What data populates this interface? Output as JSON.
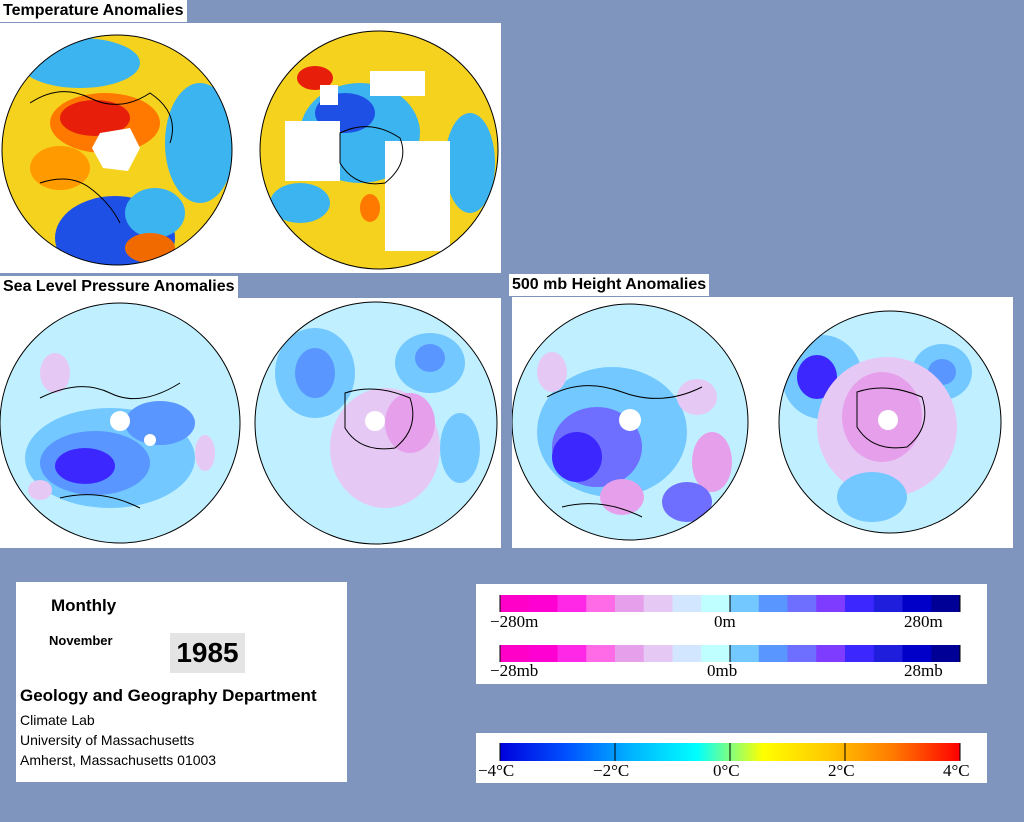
{
  "titles": {
    "temperature": "Temperature Anomalies",
    "slp": "Sea Level Pressure Anomalies",
    "height500": "500 mb Height Anomalies"
  },
  "info": {
    "period": "Monthly",
    "month": "November",
    "year": "1985",
    "department": "Geology and Geography Department",
    "lines": [
      "Climate Lab",
      "University of Massachusetts",
      "Amherst, Massachusetts 01003"
    ]
  },
  "legends": {
    "height": {
      "labels": [
        "−280m",
        "0m",
        "280m"
      ],
      "colors": [
        "#ff00c8",
        "#ff00d2",
        "#ff28e6",
        "#ff6ae6",
        "#e6a0eb",
        "#e6c8f5",
        "#d2e6ff",
        "#c0ffff",
        "#73c8ff",
        "#5a96ff",
        "#6e6eff",
        "#7d3cff",
        "#3c28ff",
        "#1e1edc",
        "#0000c8",
        "#000096"
      ]
    },
    "pressure": {
      "labels": [
        "−28mb",
        "0mb",
        "28mb"
      ],
      "colors": [
        "#ff00c8",
        "#ff00d2",
        "#ff28e6",
        "#ff6ae6",
        "#e6a0eb",
        "#e6c8f5",
        "#d2e6ff",
        "#c0ffff",
        "#73c8ff",
        "#5a96ff",
        "#6e6eff",
        "#7d3cff",
        "#3c28ff",
        "#1e1edc",
        "#0000c8",
        "#000096"
      ]
    },
    "temperature": {
      "labels": [
        "−4°C",
        "−2°C",
        "0°C",
        "2°C",
        "4°C"
      ],
      "stops": [
        "#0000dc",
        "#0050ff",
        "#00b4ff",
        "#00ffff",
        "#ffff00",
        "#ffc800",
        "#ff7800",
        "#ff0000"
      ]
    }
  },
  "colors": {
    "background": "#7f95bd",
    "temp_cold": "#1e50e6",
    "temp_cool": "#3cb4f0",
    "temp_warm": "#f5d21e",
    "temp_hot": "#e61e0a",
    "anom_pos": "#e6c8f5",
    "anom_neg": "#c0f0ff",
    "anom_low": "#3c28ff"
  }
}
